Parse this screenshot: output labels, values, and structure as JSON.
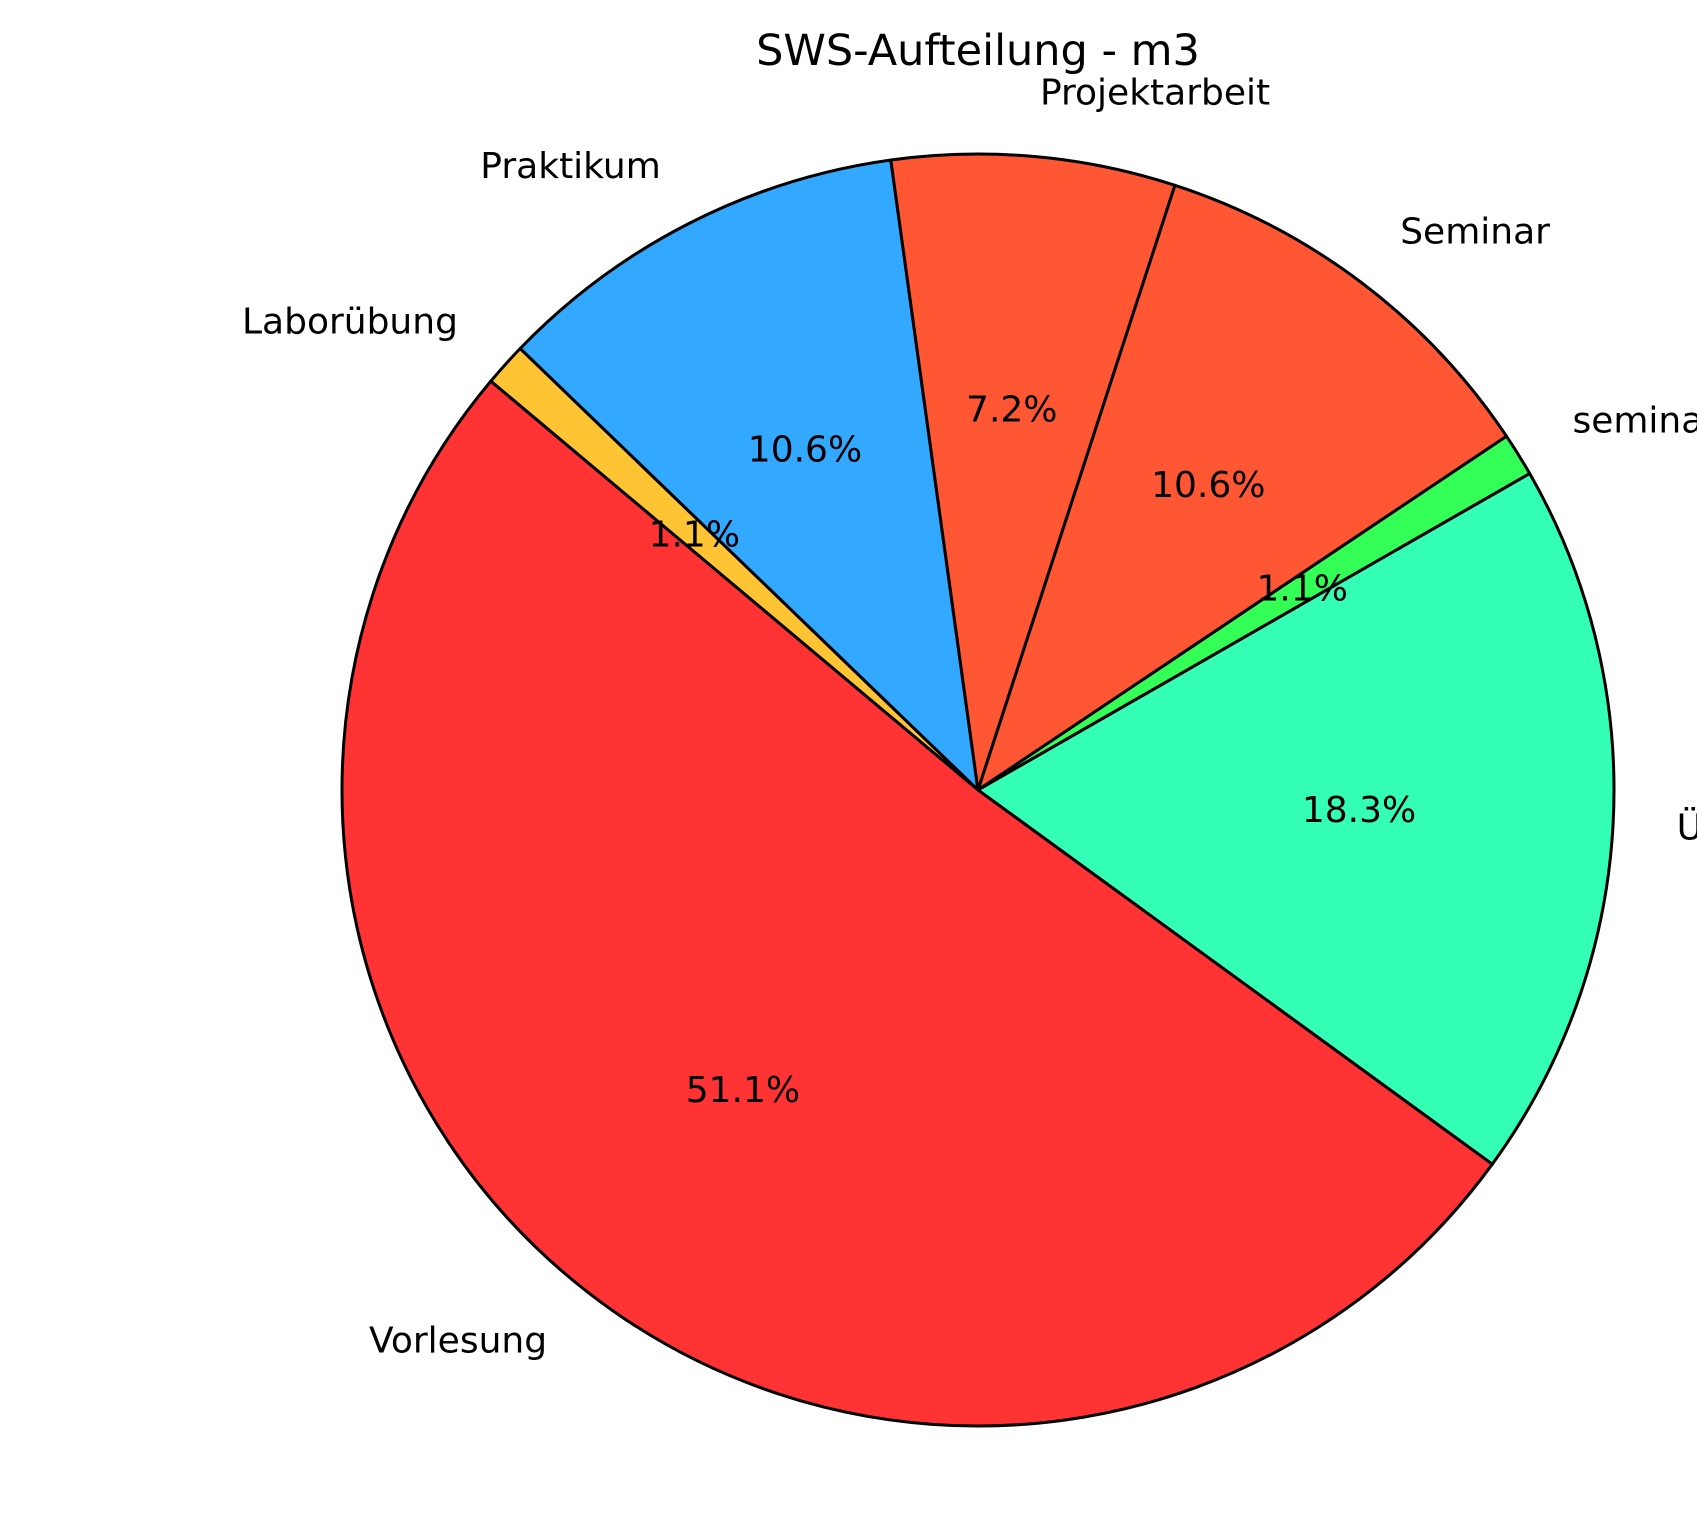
{
  "chart_data": {
    "type": "pie",
    "title": "SWS-Aufteilung - m3",
    "start_angle_deg": 140,
    "direction": "clockwise",
    "slices": [
      {
        "label": "Laborübung",
        "value": 1.1,
        "pct_label": "1.1%",
        "color": "#FFC433"
      },
      {
        "label": "Praktikum",
        "value": 10.6,
        "pct_label": "10.6%",
        "color": "#33A8FF"
      },
      {
        "label": "Projektarbeit",
        "value": 7.2,
        "pct_label": "7.2%",
        "color": "#FF5733"
      },
      {
        "label": "Seminar",
        "value": 10.6,
        "pct_label": "10.6%",
        "color": "#FF5733"
      },
      {
        "label": "seminaristischer Unterricht",
        "value": 1.1,
        "pct_label": "1.1%",
        "color": "#33FF57"
      },
      {
        "label": "Übung",
        "value": 18.3,
        "pct_label": "18.3%",
        "color": "#33FFB5"
      },
      {
        "label": "Vorlesung",
        "value": 51.1,
        "pct_label": "51.1%",
        "color": "#FF3333"
      }
    ]
  }
}
